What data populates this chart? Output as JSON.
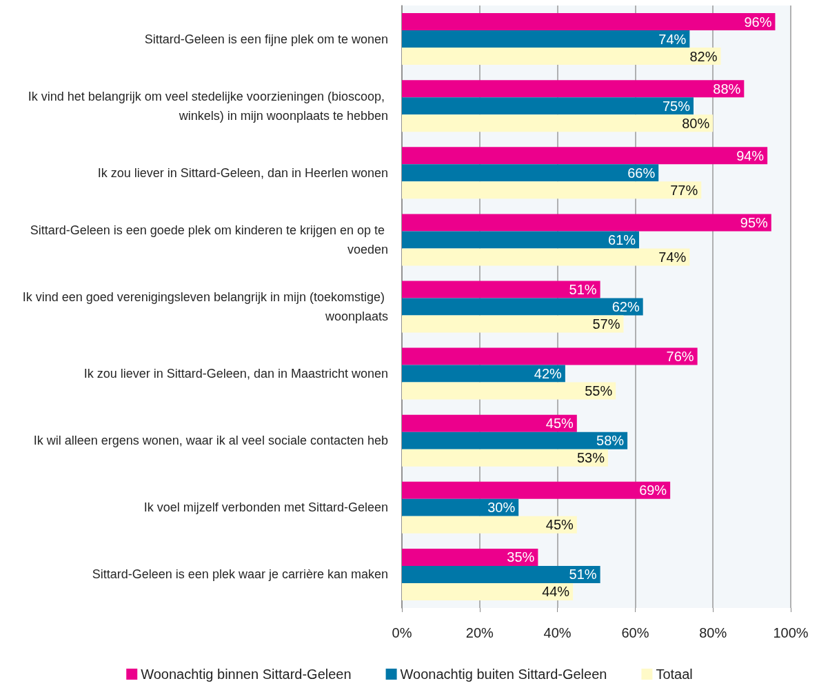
{
  "chart_data": {
    "type": "bar",
    "orientation": "horizontal",
    "categories": [
      "Sittard-Geleen is een fijne plek om te wonen",
      "Ik vind het belangrijk om veel stedelijke voorzieningen (bioscoop, winkels) in mijn woonplaats te hebben",
      "Ik zou liever in Sittard-Geleen, dan in Heerlen wonen",
      "Sittard-Geleen is een goede plek om kinderen te krijgen en op te voeden",
      "Ik vind een goed verenigingsleven belangrijk in mijn (toekomstige) woonplaats",
      "Ik zou liever in Sittard-Geleen, dan in Maastricht wonen",
      "Ik wil alleen ergens wonen, waar ik al veel sociale contacten heb",
      "Ik voel mijzelf verbonden met Sittard-Geleen",
      "Sittard-Geleen is een plek waar je carrière kan maken"
    ],
    "series": [
      {
        "name": "Woonachtig binnen Sittard-Geleen",
        "color": "#ec008c",
        "values": [
          96,
          88,
          94,
          95,
          51,
          76,
          45,
          69,
          35
        ],
        "value_labels": [
          "96%",
          "88%",
          "94%",
          "95%",
          "51%",
          "76%",
          "45%",
          "69%",
          "35%"
        ]
      },
      {
        "name": "Woonachtig buiten Sittard-Geleen",
        "color": "#0077a8",
        "values": [
          74,
          75,
          66,
          61,
          62,
          42,
          58,
          30,
          51
        ],
        "value_labels": [
          "74%",
          "75%",
          "66%",
          "61%",
          "62%",
          "42%",
          "58%",
          "30%",
          "51%"
        ]
      },
      {
        "name": "Totaal",
        "color": "#fffac8",
        "values": [
          82,
          80,
          77,
          74,
          57,
          55,
          53,
          45,
          44
        ],
        "value_labels": [
          "82%",
          "80%",
          "77%",
          "74%",
          "57%",
          "55%",
          "53%",
          "45%",
          "44%"
        ]
      }
    ],
    "xlim": [
      0,
      100
    ],
    "xticks": [
      {
        "value": 0,
        "label": "0%"
      },
      {
        "value": 20,
        "label": "20%"
      },
      {
        "value": 40,
        "label": "40%"
      },
      {
        "value": 60,
        "label": "60%"
      },
      {
        "value": 80,
        "label": "80%"
      },
      {
        "value": 100,
        "label": "100%"
      }
    ],
    "grid": "x",
    "legend": "bottom"
  }
}
